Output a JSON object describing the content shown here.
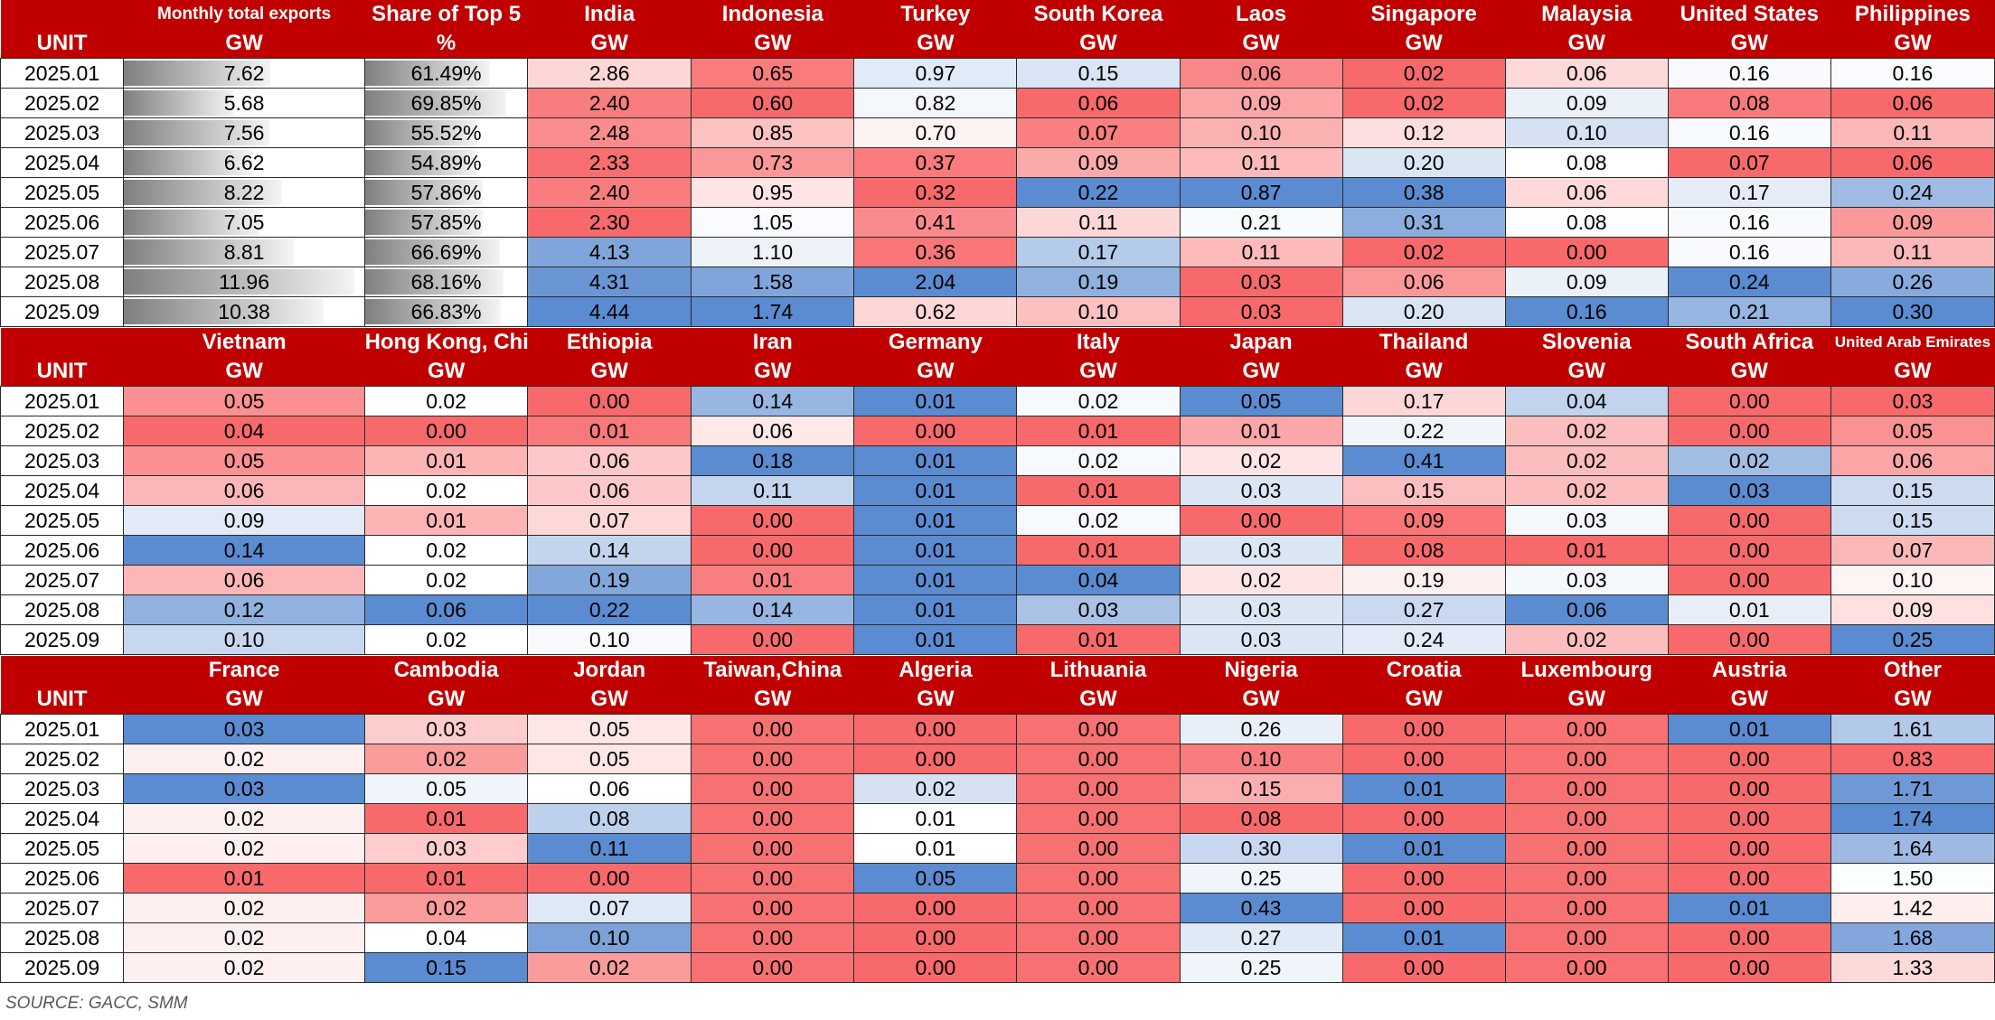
{
  "months": [
    "2025.01",
    "2025.02",
    "2025.03",
    "2025.04",
    "2025.05",
    "2025.06",
    "2025.07",
    "2025.08",
    "2025.09"
  ],
  "unit_label": "UNIT",
  "sections": [
    {
      "columns": [
        {
          "name": "Monthly total exports",
          "unit": "GW",
          "kind": "bar",
          "bar_max": 12.5,
          "values": [
            "7.62",
            "5.68",
            "7.56",
            "6.62",
            "8.22",
            "7.05",
            "8.81",
            "11.96",
            "10.38"
          ]
        },
        {
          "name": "Share of Top 5",
          "unit": "%",
          "kind": "bar",
          "bar_max": 80,
          "values": [
            "61.49%",
            "69.85%",
            "55.52%",
            "54.89%",
            "57.86%",
            "57.85%",
            "66.69%",
            "68.16%",
            "66.83%"
          ]
        },
        {
          "name": "India",
          "unit": "GW",
          "values": [
            "2.86",
            "2.40",
            "2.48",
            "2.33",
            "2.40",
            "2.30",
            "4.13",
            "4.31",
            "4.44"
          ]
        },
        {
          "name": "Indonesia",
          "unit": "GW",
          "values": [
            "0.65",
            "0.60",
            "0.85",
            "0.73",
            "0.95",
            "1.05",
            "1.10",
            "1.58",
            "1.74"
          ]
        },
        {
          "name": "Turkey",
          "unit": "GW",
          "values": [
            "0.97",
            "0.82",
            "0.70",
            "0.37",
            "0.32",
            "0.41",
            "0.36",
            "2.04",
            "0.62"
          ]
        },
        {
          "name": "South Korea",
          "unit": "GW",
          "values": [
            "0.15",
            "0.06",
            "0.07",
            "0.09",
            "0.22",
            "0.11",
            "0.17",
            "0.19",
            "0.10"
          ]
        },
        {
          "name": "Laos",
          "unit": "GW",
          "values": [
            "0.06",
            "0.09",
            "0.10",
            "0.11",
            "0.87",
            "0.21",
            "0.11",
            "0.03",
            "0.03"
          ]
        },
        {
          "name": "Singapore",
          "unit": "GW",
          "values": [
            "0.02",
            "0.02",
            "0.12",
            "0.20",
            "0.38",
            "0.31",
            "0.02",
            "0.06",
            "0.20"
          ]
        },
        {
          "name": "Malaysia",
          "unit": "GW",
          "values": [
            "0.06",
            "0.09",
            "0.10",
            "0.08",
            "0.06",
            "0.08",
            "0.00",
            "0.09",
            "0.16"
          ]
        },
        {
          "name": "United States",
          "unit": "GW",
          "values": [
            "0.16",
            "0.08",
            "0.16",
            "0.07",
            "0.17",
            "0.16",
            "0.16",
            "0.24",
            "0.21"
          ]
        },
        {
          "name": "Philippines",
          "unit": "GW",
          "values": [
            "0.16",
            "0.06",
            "0.11",
            "0.06",
            "0.24",
            "0.09",
            "0.11",
            "0.26",
            "0.30"
          ]
        }
      ]
    },
    {
      "columns": [
        {
          "name": "Vietnam",
          "unit": "GW",
          "values": [
            "0.05",
            "0.04",
            "0.05",
            "0.06",
            "0.09",
            "0.14",
            "0.06",
            "0.12",
            "0.10"
          ]
        },
        {
          "name": "Hong Kong, China",
          "unit": "GW",
          "values": [
            "0.02",
            "0.00",
            "0.01",
            "0.02",
            "0.01",
            "0.02",
            "0.02",
            "0.06",
            "0.02"
          ]
        },
        {
          "name": "Ethiopia",
          "unit": "GW",
          "values": [
            "0.00",
            "0.01",
            "0.06",
            "0.06",
            "0.07",
            "0.14",
            "0.19",
            "0.22",
            "0.10"
          ]
        },
        {
          "name": "Iran",
          "unit": "GW",
          "values": [
            "0.14",
            "0.06",
            "0.18",
            "0.11",
            "0.00",
            "0.00",
            "0.01",
            "0.14",
            "0.00"
          ]
        },
        {
          "name": "Germany",
          "unit": "GW",
          "values": [
            "0.01",
            "0.00",
            "0.01",
            "0.01",
            "0.01",
            "0.01",
            "0.01",
            "0.01",
            "0.01"
          ]
        },
        {
          "name": "Italy",
          "unit": "GW",
          "values": [
            "0.02",
            "0.01",
            "0.02",
            "0.01",
            "0.02",
            "0.01",
            "0.04",
            "0.03",
            "0.01"
          ]
        },
        {
          "name": "Japan",
          "unit": "GW",
          "values": [
            "0.05",
            "0.01",
            "0.02",
            "0.03",
            "0.00",
            "0.03",
            "0.02",
            "0.03",
            "0.03"
          ]
        },
        {
          "name": "Thailand",
          "unit": "GW",
          "values": [
            "0.17",
            "0.22",
            "0.41",
            "0.15",
            "0.09",
            "0.08",
            "0.19",
            "0.27",
            "0.24"
          ]
        },
        {
          "name": "Slovenia",
          "unit": "GW",
          "values": [
            "0.04",
            "0.02",
            "0.02",
            "0.02",
            "0.03",
            "0.01",
            "0.03",
            "0.06",
            "0.02"
          ]
        },
        {
          "name": "South Africa",
          "unit": "GW",
          "values": [
            "0.00",
            "0.00",
            "0.02",
            "0.03",
            "0.00",
            "0.00",
            "0.00",
            "0.01",
            "0.00"
          ]
        },
        {
          "name": "United Arab Emirates",
          "unit": "GW",
          "small": true,
          "values": [
            "0.03",
            "0.05",
            "0.06",
            "0.15",
            "0.15",
            "0.07",
            "0.10",
            "0.09",
            "0.25"
          ]
        }
      ]
    },
    {
      "columns": [
        {
          "name": "France",
          "unit": "GW",
          "values": [
            "0.03",
            "0.02",
            "0.03",
            "0.02",
            "0.02",
            "0.01",
            "0.02",
            "0.02",
            "0.02"
          ]
        },
        {
          "name": "Cambodia",
          "unit": "GW",
          "values": [
            "0.03",
            "0.02",
            "0.05",
            "0.01",
            "0.03",
            "0.01",
            "0.02",
            "0.04",
            "0.15"
          ]
        },
        {
          "name": "Jordan",
          "unit": "GW",
          "values": [
            "0.05",
            "0.05",
            "0.06",
            "0.08",
            "0.11",
            "0.00",
            "0.07",
            "0.10",
            "0.02"
          ]
        },
        {
          "name": "Taiwan,China",
          "unit": "GW",
          "values": [
            "0.00",
            "0.00",
            "0.00",
            "0.00",
            "0.00",
            "0.00",
            "0.00",
            "0.00",
            "0.00"
          ]
        },
        {
          "name": "Algeria",
          "unit": "GW",
          "values": [
            "0.00",
            "0.00",
            "0.02",
            "0.01",
            "0.01",
            "0.05",
            "0.00",
            "0.00",
            "0.00"
          ]
        },
        {
          "name": "Lithuania",
          "unit": "GW",
          "values": [
            "0.00",
            "0.00",
            "0.00",
            "0.00",
            "0.00",
            "0.00",
            "0.00",
            "0.00",
            "0.00"
          ]
        },
        {
          "name": "Nigeria",
          "unit": "GW",
          "values": [
            "0.26",
            "0.10",
            "0.15",
            "0.08",
            "0.30",
            "0.25",
            "0.43",
            "0.27",
            "0.25"
          ]
        },
        {
          "name": "Croatia",
          "unit": "GW",
          "values": [
            "0.00",
            "0.00",
            "0.01",
            "0.00",
            "0.01",
            "0.00",
            "0.00",
            "0.01",
            "0.00"
          ]
        },
        {
          "name": "Luxembourg",
          "unit": "GW",
          "values": [
            "0.00",
            "0.00",
            "0.00",
            "0.00",
            "0.00",
            "0.00",
            "0.00",
            "0.00",
            "0.00"
          ]
        },
        {
          "name": "Austria",
          "unit": "GW",
          "values": [
            "0.01",
            "0.00",
            "0.00",
            "0.00",
            "0.00",
            "0.00",
            "0.01",
            "0.00",
            "0.00"
          ]
        },
        {
          "name": "Other",
          "unit": "GW",
          "values": [
            "1.61",
            "0.83",
            "1.71",
            "1.74",
            "1.64",
            "1.50",
            "1.42",
            "1.68",
            "1.33"
          ]
        }
      ]
    }
  ],
  "source": "SOURCE:  GACC,  SMM",
  "colors": {
    "header": "#c00000",
    "high": "#5b8bd0",
    "mid": "#ffffff",
    "low": "#f8696b",
    "bar": "#7f7f7f"
  }
}
